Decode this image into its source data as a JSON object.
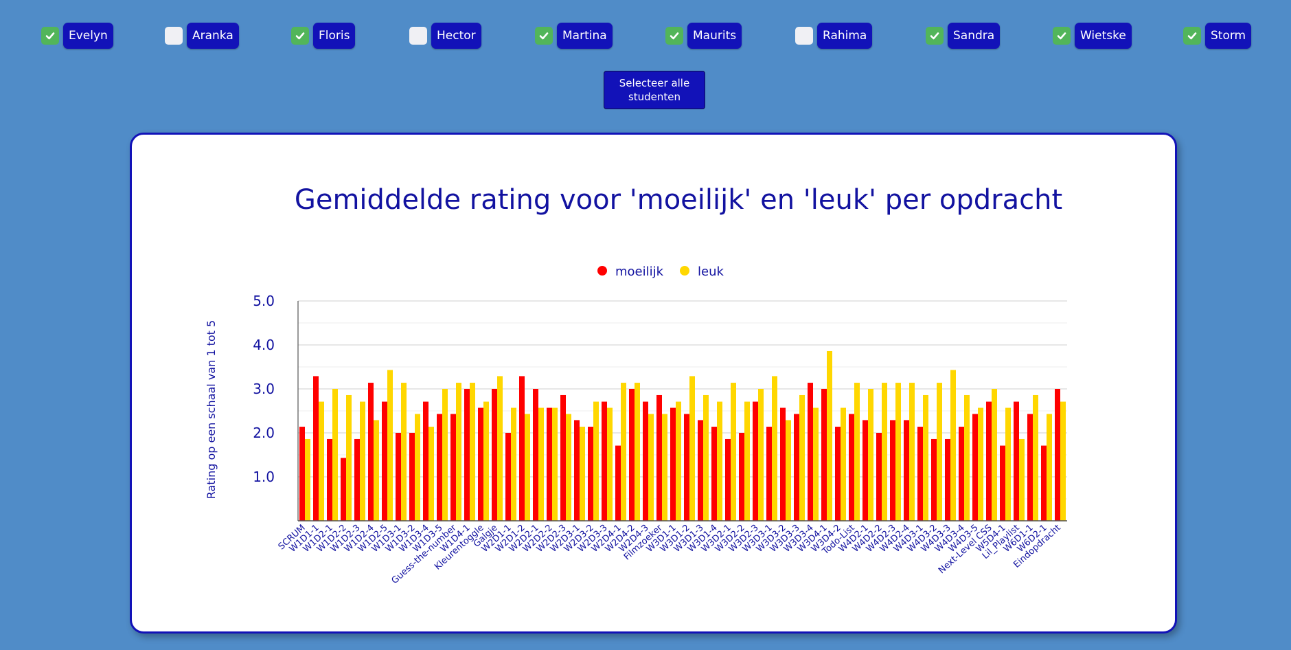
{
  "students": [
    {
      "name": "Evelyn",
      "checked": true
    },
    {
      "name": "Aranka",
      "checked": false
    },
    {
      "name": "Floris",
      "checked": true
    },
    {
      "name": "Hector",
      "checked": false
    },
    {
      "name": "Martina",
      "checked": true
    },
    {
      "name": "Maurits",
      "checked": true
    },
    {
      "name": "Rahima",
      "checked": false
    },
    {
      "name": "Sandra",
      "checked": true
    },
    {
      "name": "Wietske",
      "checked": true
    },
    {
      "name": "Storm",
      "checked": true
    }
  ],
  "select_all_label": "Selecteer alle studenten",
  "colors": {
    "background": "#508cc8",
    "accent": "#1212b8",
    "checkbox_checked": "#52b55a",
    "moeilijk": "#ff0000",
    "leuk": "#ffd700"
  },
  "chart_data": {
    "type": "bar",
    "title": "Gemiddelde rating voor 'moeilijk' en 'leuk' per opdracht",
    "xlabel": "",
    "ylabel": "Rating op een schaal van 1 tot 5",
    "ylim": [
      0,
      5
    ],
    "yticks": [
      "1.0",
      "2.0",
      "3.0",
      "4.0",
      "5.0"
    ],
    "grid": true,
    "legend_position": "top-center",
    "categories": [
      "SCRUM",
      "W1D1-1",
      "W1D2-1",
      "W1D2-2",
      "W1D2-3",
      "W1D2-4",
      "W1D2-5",
      "W1D3-1",
      "W1D3-2",
      "W1D3-4",
      "W1D3-5",
      "Guess-the-number",
      "W1D4-1",
      "Kleurentoggle",
      "Galgje",
      "W2D1-1",
      "W2D1-2",
      "W2D2-1",
      "W2D2-2",
      "W2D2-3",
      "W2D3-1",
      "W2D3-2",
      "W2D3-3",
      "W2D4-1",
      "W2D4-2",
      "W2D4-3",
      "Filmzoeker",
      "W3D1-1",
      "W3D1-2",
      "W3D1-3",
      "W3D1-4",
      "W3D2-1",
      "W3D2-2",
      "W3D2-3",
      "W3D3-1",
      "W3D3-2",
      "W3D3-3",
      "W3D3-4",
      "W3D4-1",
      "W3D4-2",
      "Todo-List",
      "W4D2-1",
      "W4D2-2",
      "W4D2-3",
      "W4D2-4",
      "W4D3-1",
      "W4D3-2",
      "W4D3-3",
      "W4D3-4",
      "W4D3-5",
      "Next-Level CSS",
      "W5D4-1",
      "Lil_Playlist",
      "W6D1-1",
      "W6D2-1",
      "Eindopdracht"
    ],
    "series": [
      {
        "name": "moeilijk",
        "color": "#ff0000",
        "values": [
          2.14,
          3.29,
          1.86,
          1.43,
          1.86,
          3.14,
          2.71,
          2.0,
          2.0,
          2.71,
          2.43,
          2.43,
          3.0,
          2.57,
          3.0,
          2.0,
          3.29,
          3.0,
          2.57,
          2.86,
          2.29,
          2.14,
          2.71,
          1.71,
          3.0,
          2.71,
          2.86,
          2.57,
          2.43,
          2.29,
          2.14,
          1.86,
          2.0,
          2.71,
          2.14,
          2.57,
          2.43,
          3.14,
          3.0,
          2.14,
          2.43,
          2.29,
          2.0,
          2.29,
          2.29,
          2.14,
          1.86,
          1.86,
          2.14,
          2.43,
          2.71,
          1.71,
          2.71,
          2.43,
          1.71,
          3.0
        ]
      },
      {
        "name": "leuk",
        "color": "#ffd700",
        "values": [
          1.86,
          2.71,
          3.0,
          2.86,
          2.71,
          2.29,
          3.43,
          3.14,
          2.43,
          2.14,
          3.0,
          3.14,
          3.14,
          2.71,
          3.29,
          2.57,
          2.43,
          2.57,
          2.57,
          2.43,
          2.14,
          2.71,
          2.57,
          3.14,
          3.14,
          2.43,
          2.43,
          2.71,
          3.29,
          2.86,
          2.71,
          3.14,
          2.71,
          3.0,
          3.29,
          2.29,
          2.86,
          2.57,
          3.86,
          2.57,
          3.14,
          3.0,
          3.14,
          3.14,
          3.14,
          2.86,
          3.14,
          3.43,
          2.86,
          2.57,
          3.0,
          2.57,
          1.86,
          2.86,
          2.43,
          2.71
        ]
      }
    ]
  }
}
